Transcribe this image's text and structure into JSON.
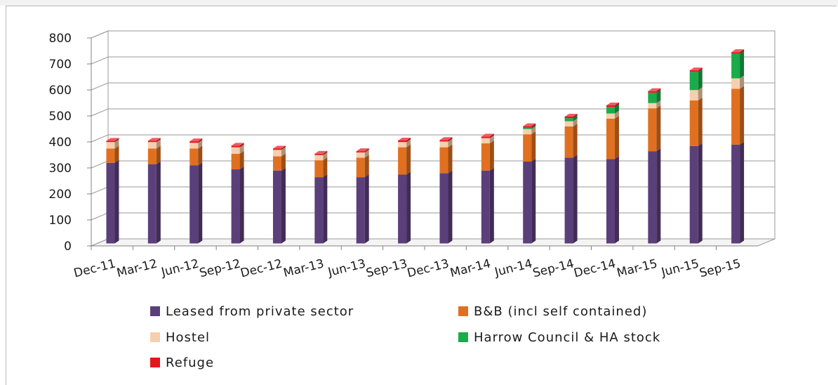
{
  "chart_data": {
    "type": "bar",
    "stacked": true,
    "three_d": true,
    "categories": [
      "Dec-11",
      "Mar-12",
      "Jun-12",
      "Sep-12",
      "Dec-12",
      "Mar-13",
      "Jun-13",
      "Sep-13",
      "Dec-13",
      "Mar-14",
      "Jun-14",
      "Sep-14",
      "Dec-14",
      "Mar-15",
      "Jun-15",
      "Sep-15"
    ],
    "ylim": [
      0,
      800
    ],
    "yticks": [
      0,
      100,
      200,
      300,
      400,
      500,
      600,
      700,
      800
    ],
    "grid": true,
    "legend_position": "bottom",
    "series": [
      {
        "name": "Leased from private sector",
        "color": "#5b3f7a",
        "values": [
          310,
          305,
          300,
          285,
          280,
          255,
          255,
          265,
          270,
          280,
          315,
          330,
          325,
          355,
          375,
          380
        ]
      },
      {
        "name": "B&B (incl self contained)",
        "color": "#e07020",
        "values": [
          55,
          60,
          65,
          60,
          55,
          65,
          75,
          105,
          100,
          105,
          105,
          120,
          155,
          165,
          175,
          215
        ]
      },
      {
        "name": "Hostel",
        "color": "#f7cfae",
        "values": [
          25,
          25,
          22,
          25,
          25,
          20,
          20,
          20,
          22,
          20,
          20,
          20,
          20,
          20,
          40,
          40
        ]
      },
      {
        "name": "Harrow Council & HA stock",
        "color": "#1aab4a",
        "values": [
          0,
          0,
          0,
          0,
          0,
          0,
          0,
          0,
          0,
          0,
          5,
          12,
          25,
          40,
          70,
          95
        ]
      },
      {
        "name": "Refuge",
        "color": "#e8141c",
        "values": [
          5,
          5,
          6,
          6,
          5,
          5,
          5,
          6,
          6,
          6,
          6,
          6,
          6,
          6,
          6,
          6
        ]
      }
    ]
  }
}
